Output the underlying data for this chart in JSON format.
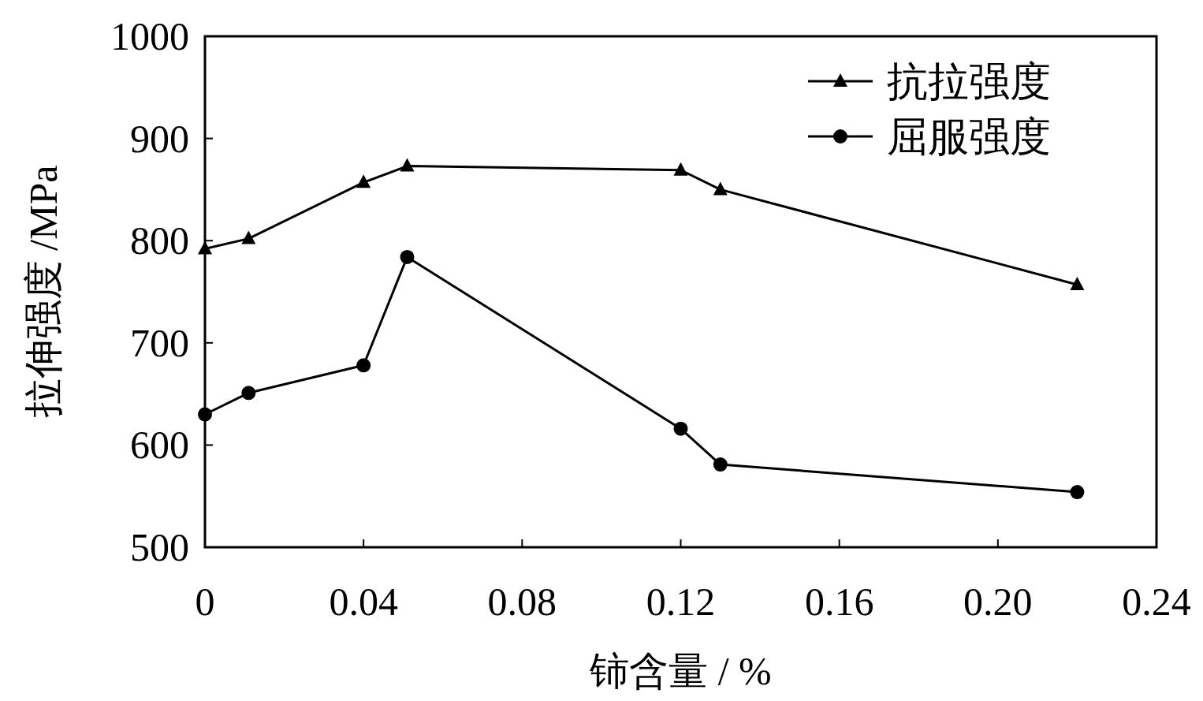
{
  "chart_data": {
    "type": "line",
    "xlabel": "铈含量 / %",
    "ylabel": "拉伸强度 /MPa",
    "xlim": [
      0,
      0.24
    ],
    "ylim": [
      500,
      1000
    ],
    "xticks": [
      0,
      0.04,
      0.08,
      0.12,
      0.16,
      {
        "value": 0.2,
        "label": "0.20"
      },
      0.24
    ],
    "yticks": [
      500,
      600,
      700,
      800,
      900,
      1000
    ],
    "grid": false,
    "legend": "top right",
    "line_style": "solid",
    "series": [
      {
        "name": "抗拉强度",
        "color": "#000000",
        "marker": "triangle",
        "x": [
          0,
          0.011,
          0.04,
          0.051,
          0.12,
          0.13,
          0.22
        ],
        "values": [
          792,
          802,
          857,
          873,
          869,
          850,
          757
        ]
      },
      {
        "name": "屈服强度",
        "color": "#000000",
        "marker": "circle",
        "x": [
          0,
          0.011,
          0.04,
          0.051,
          0.12,
          0.13,
          0.22
        ],
        "values": [
          630,
          651,
          678,
          784,
          616,
          581,
          554
        ]
      }
    ]
  }
}
